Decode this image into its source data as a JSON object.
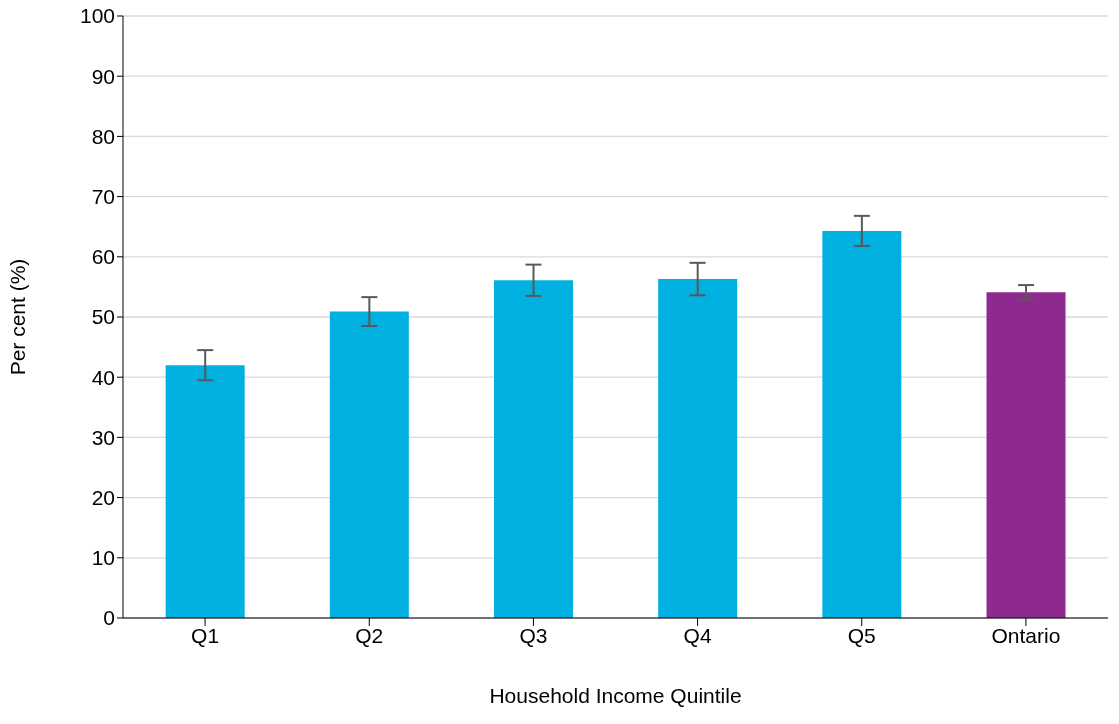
{
  "chart_data": {
    "type": "bar",
    "xlabel": "Household Income Quintile",
    "ylabel": "Per cent (%)",
    "categories": [
      "Q1",
      "Q2",
      "Q3",
      "Q4",
      "Q5",
      "Ontario"
    ],
    "values": [
      42,
      50.9,
      56.1,
      56.3,
      64.3,
      54.1
    ],
    "errors": [
      2.5,
      2.4,
      2.6,
      2.7,
      2.5,
      1.2
    ],
    "colors": [
      "#00b0e0",
      "#00b0e0",
      "#00b0e0",
      "#00b0e0",
      "#00b0e0",
      "#8e2a8f"
    ],
    "ylim": [
      0,
      100
    ],
    "yticks": [
      0,
      10,
      20,
      30,
      40,
      50,
      60,
      70,
      80,
      90,
      100
    ],
    "grid": "y"
  }
}
